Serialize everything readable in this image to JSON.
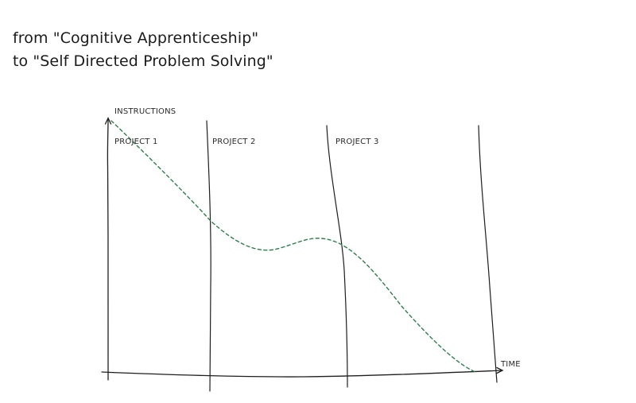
{
  "title": {
    "line1": "from \"Cognitive Apprenticeship\"",
    "line2": "to \"Self Directed Problem Solving\""
  },
  "diagram": {
    "y_axis_label": "INSTRUCTIONS",
    "x_axis_label": "TIME",
    "phases": [
      {
        "label": "PROJECT 1"
      },
      {
        "label": "PROJECT 2"
      },
      {
        "label": "PROJECT 3"
      }
    ],
    "colors": {
      "curve": "#2e7d4f",
      "lines": "#1e1e1e",
      "text": "#2a2a2a"
    }
  }
}
